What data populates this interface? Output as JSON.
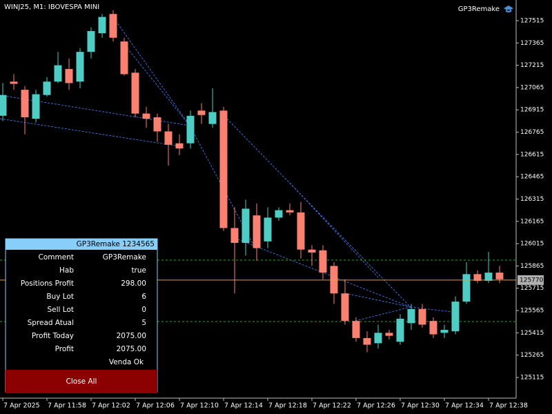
{
  "chart_data": {
    "type": "candlestick",
    "title": "WINJ25, M1:  IBOVESPA MINI",
    "indicator_name": "GP3Remake",
    "categories": [
      "7 Apr 2025",
      null,
      null,
      null,
      "7 Apr 11:58",
      null,
      null,
      null,
      "7 Apr 12:02",
      null,
      null,
      null,
      "7 Apr 12:06",
      null,
      null,
      null,
      "7 Apr 12:10",
      null,
      null,
      null,
      "7 Apr 12:14",
      null,
      null,
      null,
      "7 Apr 12:18",
      null,
      null,
      null,
      "7 Apr 12:22",
      null,
      null,
      null,
      "7 Apr 12:26",
      null,
      null,
      null,
      "7 Apr 12:30",
      null,
      null,
      null,
      "7 Apr 12:34",
      null,
      null,
      null,
      "7 Apr 12:38",
      null
    ],
    "open": [
      126875,
      127105,
      127050,
      126855,
      127015,
      127105,
      127190,
      127105,
      127305,
      127430,
      127560,
      127375,
      127165,
      126890,
      126865,
      126770,
      126690,
      126690,
      126910,
      126820,
      126910,
      126120,
      126020,
      126205,
      126030,
      126190,
      126240,
      126225,
      125975,
      125970,
      125865,
      125680,
      125495,
      125380,
      125345,
      125415,
      125355,
      125480,
      125575,
      125495,
      125415,
      125425,
      125625,
      125810,
      125765,
      125820
    ],
    "high": [
      127095,
      127155,
      127075,
      127050,
      127135,
      127305,
      127260,
      127330,
      127470,
      127560,
      127585,
      127400,
      127190,
      126935,
      126890,
      126820,
      126750,
      126910,
      126960,
      127060,
      126935,
      126260,
      126310,
      126285,
      126260,
      126260,
      126285,
      126295,
      126005,
      126005,
      125890,
      125775,
      125520,
      125425,
      125470,
      125435,
      125540,
      125610,
      125610,
      125520,
      125470,
      125660,
      125890,
      125835,
      125960,
      125865
    ],
    "low": [
      126840,
      127050,
      126750,
      126830,
      127005,
      127095,
      127050,
      127060,
      127260,
      127400,
      127375,
      127145,
      126865,
      126795,
      126700,
      126540,
      126610,
      126655,
      126820,
      126795,
      126100,
      125680,
      125935,
      125900,
      125985,
      126170,
      126205,
      125915,
      125865,
      125775,
      125610,
      125470,
      125355,
      125285,
      125310,
      125370,
      125335,
      125435,
      125450,
      125380,
      125380,
      125405,
      125610,
      125750,
      125750,
      125750
    ],
    "close": [
      127015,
      127090,
      126865,
      127020,
      127105,
      127215,
      127095,
      127305,
      127445,
      127540,
      127400,
      127155,
      126890,
      126855,
      126770,
      126680,
      126655,
      126875,
      126880,
      126900,
      126120,
      126020,
      126250,
      125985,
      126190,
      126240,
      126225,
      125975,
      125955,
      125820,
      125680,
      125495,
      125380,
      125335,
      125415,
      125395,
      125510,
      125575,
      125470,
      125405,
      125435,
      125625,
      125810,
      125765,
      125820,
      125775
    ],
    "up_color": "#4ecdc4",
    "down_color": "#fa8072",
    "ylim": [
      124985,
      127654
    ],
    "yticks": [
      127515,
      127365,
      127215,
      127065,
      126915,
      126765,
      126615,
      126465,
      126315,
      126165,
      126015,
      125865,
      125715,
      125565,
      125415,
      125265,
      125115
    ],
    "current_price": 125770,
    "grid": false
  },
  "panel": {
    "header": "GP3Remake 1234565",
    "rows": [
      [
        "Comment",
        "GP3Remake"
      ],
      [
        "Hab",
        "true"
      ],
      [
        "Positions Profit",
        "298.00"
      ],
      [
        "Buy Lot",
        "6"
      ],
      [
        "Sell Lot",
        "0"
      ],
      [
        "Spread Atual",
        "5"
      ],
      [
        "Profit Today",
        "2075.00"
      ],
      [
        "Profit",
        "2075.00"
      ]
    ],
    "status": "Venda Ok",
    "button": "Close All"
  }
}
